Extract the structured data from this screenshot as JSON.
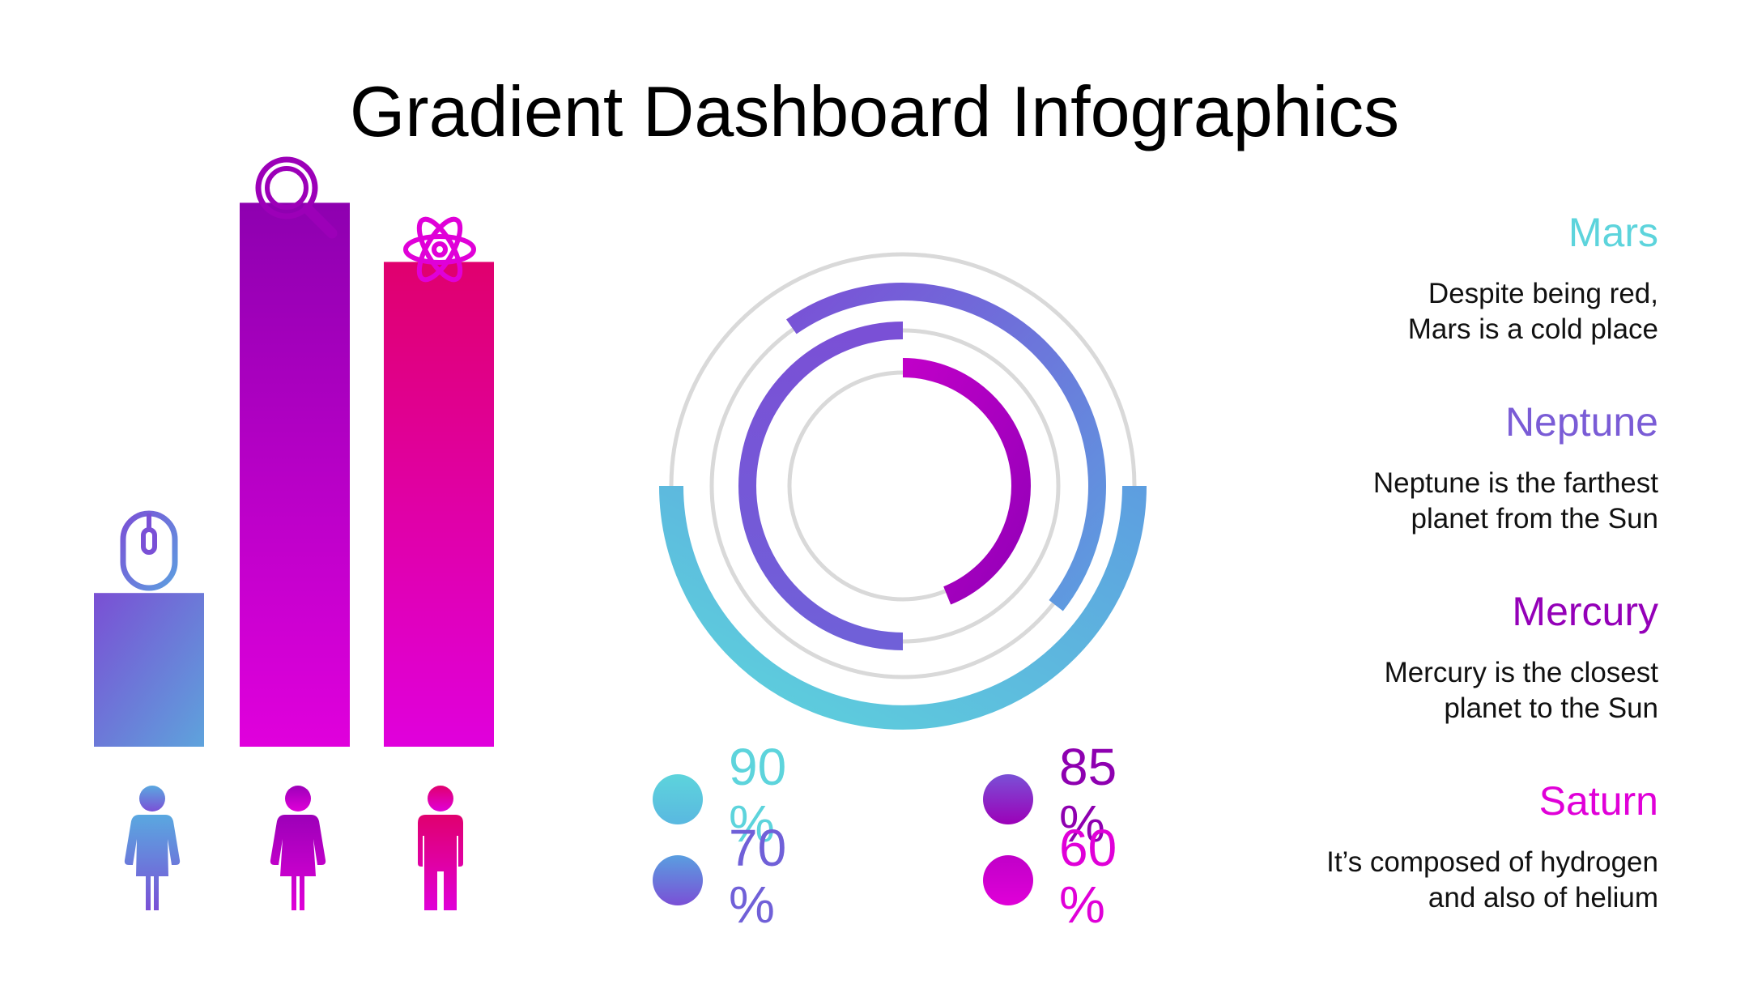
{
  "title": "Gradient Dashboard Infographics",
  "colors": {
    "teal": "#5dd4dc",
    "blue": "#5d9ee0",
    "indigo": "#7a5cd6",
    "purple": "#9400b8",
    "magenta": "#e000d8",
    "pink": "#e0006e",
    "track": "#d9d9d9"
  },
  "chart_data": [
    {
      "type": "bar",
      "categories": [
        "mouse",
        "search",
        "atom"
      ],
      "icons": [
        "mouse-icon",
        "search-icon",
        "atom-icon"
      ],
      "people": [
        "woman-icon",
        "woman-icon",
        "man-icon"
      ],
      "values": [
        26,
        92,
        82
      ],
      "ylim": [
        0,
        100
      ]
    },
    {
      "type": "pie",
      "subtype": "radial-rings",
      "values": [
        90,
        85,
        70,
        60
      ],
      "labels": [
        "90 %",
        "85 %",
        "70 %",
        "60 %"
      ]
    }
  ],
  "legend": [
    {
      "name": "Mars",
      "color": "#5dd4dc",
      "desc_line1": "Despite being red,",
      "desc_line2": "Mars is a cold place"
    },
    {
      "name": "Neptune",
      "color": "#7a5cd6",
      "desc_line1": "Neptune is the farthest",
      "desc_line2": "planet from the Sun"
    },
    {
      "name": "Mercury",
      "color": "#9400b8",
      "desc_line1": "Mercury is the closest",
      "desc_line2": "planet to the Sun"
    },
    {
      "name": "Saturn",
      "color": "#e000d8",
      "desc_line1": "It’s composed of hydrogen",
      "desc_line2": "and also of helium"
    }
  ]
}
